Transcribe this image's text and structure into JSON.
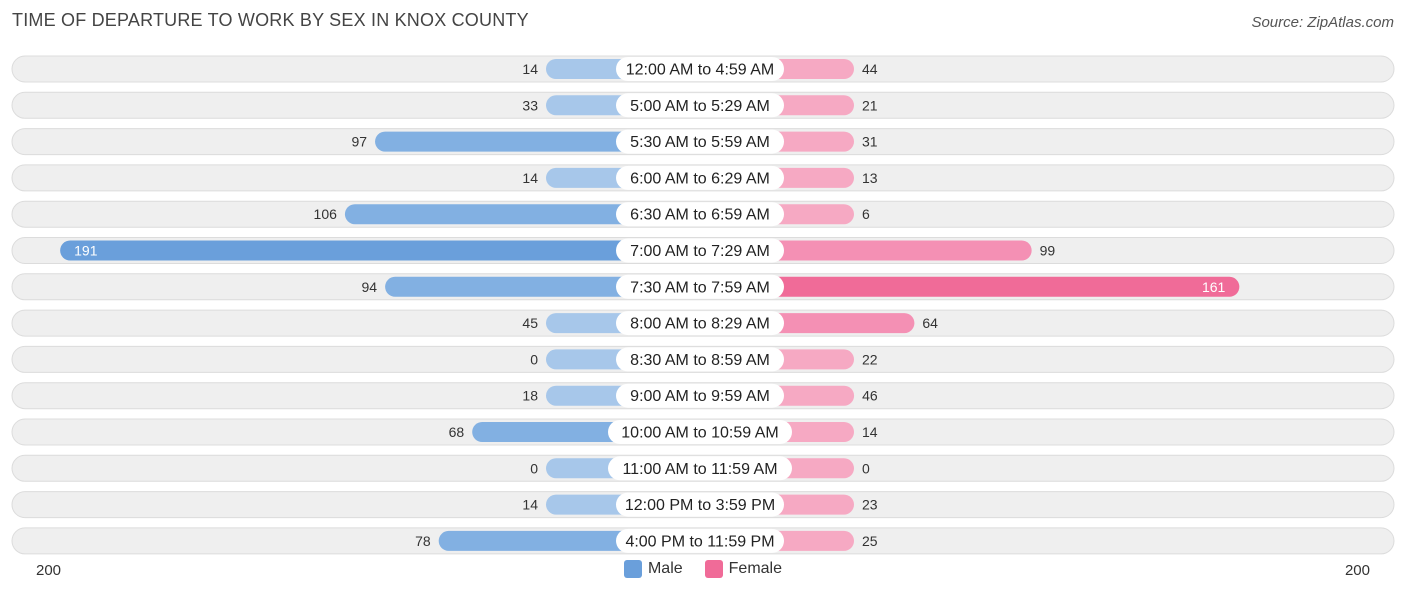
{
  "chart_data": {
    "type": "bar",
    "title": "TIME OF DEPARTURE TO WORK BY SEX IN KNOX COUNTY",
    "source": "Source: ZipAtlas.com",
    "categories": [
      "12:00 AM to 4:59 AM",
      "5:00 AM to 5:29 AM",
      "5:30 AM to 5:59 AM",
      "6:00 AM to 6:29 AM",
      "6:30 AM to 6:59 AM",
      "7:00 AM to 7:29 AM",
      "7:30 AM to 7:59 AM",
      "8:00 AM to 8:29 AM",
      "8:30 AM to 8:59 AM",
      "9:00 AM to 9:59 AM",
      "10:00 AM to 10:59 AM",
      "11:00 AM to 11:59 AM",
      "12:00 PM to 3:59 PM",
      "4:00 PM to 11:59 PM"
    ],
    "series": [
      {
        "name": "Male",
        "values": [
          14,
          33,
          97,
          14,
          106,
          191,
          94,
          45,
          0,
          18,
          68,
          0,
          14,
          78
        ]
      },
      {
        "name": "Female",
        "values": [
          44,
          21,
          31,
          13,
          6,
          99,
          161,
          64,
          22,
          46,
          14,
          0,
          23,
          25
        ]
      }
    ],
    "axis_left_label": "200",
    "axis_right_label": "200",
    "xlim": [
      -200,
      200
    ],
    "legend_position": "bottom-center"
  },
  "colors": {
    "male_light": "#a7c7ea",
    "male_strong": "#6a9fdb",
    "female_light": "#f6a9c3",
    "female_strong": "#f06b98",
    "row_bg": "#efefef",
    "row_border": "#dcdcdc"
  }
}
